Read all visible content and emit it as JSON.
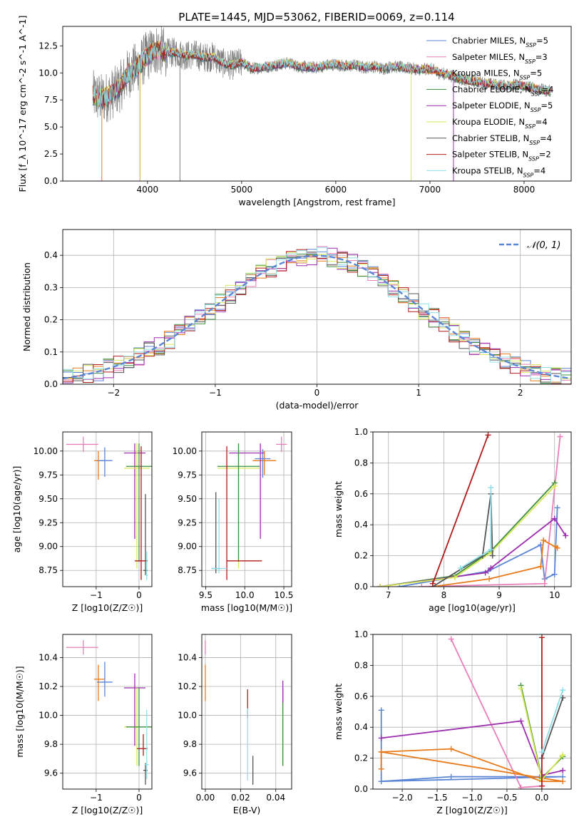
{
  "figure": {
    "title": "PLATE=1445, MJD=53062, FIBERID=0069, z=0.114"
  },
  "legend_series": [
    {
      "name": "Chabrier MILES",
      "nssp": "5",
      "color": "#5b86d6"
    },
    {
      "name": "Salpeter MILES",
      "nssp": "3",
      "color": "#e87fb8"
    },
    {
      "name": "Kroupa MILES",
      "nssp": "5",
      "color": "#e87a1a"
    },
    {
      "name": "Chabrier ELODIE",
      "nssp": "4",
      "color": "#3f8f3f"
    },
    {
      "name": "Salpeter ELODIE",
      "nssp": "5",
      "color": "#9b2fae"
    },
    {
      "name": "Kroupa ELODIE",
      "nssp": "4",
      "color": "#d8e85a"
    },
    {
      "name": "Chabrier STELIB",
      "nssp": "4",
      "color": "#555555"
    },
    {
      "name": "Salpeter STELIB",
      "nssp": "2",
      "color": "#b01b1b"
    },
    {
      "name": "Kroupa STELIB",
      "nssp": "4",
      "color": "#8fe0e8"
    }
  ],
  "chart_data": [
    {
      "id": "spectrum",
      "type": "line",
      "xlabel": "wavelength [Angstrom, rest frame]",
      "ylabel": "Flux [f_λ 10^-17 erg cm^-2 s^-1 A^-1]",
      "xlim": [
        3100,
        8500
      ],
      "ylim": [
        0,
        14.3
      ],
      "xticks": [
        4000,
        5000,
        6000,
        7000,
        8000
      ],
      "yticks": [
        0.0,
        2.5,
        5.0,
        7.5,
        10.0,
        12.5
      ],
      "grid": false,
      "legend": "top-right",
      "observed_color": "#808080",
      "model_envelope": {
        "x": [
          3420,
          3520,
          3600,
          3700,
          3800,
          3900,
          4000,
          4100,
          4200,
          4300,
          4400,
          4500,
          4600,
          4700,
          4800,
          4900,
          5000,
          5100,
          5200,
          5300,
          5400,
          5500,
          5600,
          5700,
          5800,
          5900,
          6000,
          6100,
          6200,
          6300,
          6400,
          6500,
          6600,
          6700,
          6800,
          6900,
          7000,
          7100,
          7200,
          7300,
          7400,
          7500,
          7600,
          7700,
          7800,
          7900,
          8000,
          8100,
          8200,
          8280
        ],
        "y": [
          7.9,
          7.6,
          7.9,
          8.6,
          10.0,
          10.6,
          11.6,
          12.2,
          11.8,
          11.9,
          11.6,
          11.7,
          11.4,
          11.5,
          10.9,
          10.7,
          11.0,
          10.4,
          10.5,
          10.6,
          10.8,
          10.9,
          10.6,
          10.5,
          10.5,
          10.7,
          10.8,
          10.6,
          10.7,
          10.5,
          10.6,
          10.4,
          10.6,
          10.5,
          10.4,
          10.3,
          10.4,
          10.0,
          9.8,
          9.5,
          9.3,
          9.2,
          9.0,
          8.9,
          8.8,
          8.9,
          8.8,
          8.6,
          8.4,
          8.3
        ]
      }
    },
    {
      "id": "residuals",
      "type": "line",
      "xlabel": "(data-model)/error",
      "ylabel": "Normed distribution",
      "xlim": [
        -2.5,
        2.5
      ],
      "ylim": [
        0,
        0.48
      ],
      "xticks": [
        -2,
        -1,
        0,
        1,
        2
      ],
      "yticks": [
        0.0,
        0.1,
        0.2,
        0.3,
        0.4
      ],
      "grid": true,
      "legend": "top-right",
      "reference_curve": {
        "name": "𝒩(0, 1)",
        "mean": 0,
        "sigma": 1,
        "style": "dashed",
        "color": "#5b86d6"
      },
      "histogram_series_count": 9
    },
    {
      "id": "age-vs-Z",
      "type": "scatter",
      "xlabel": "Z [log10(Z/Z☉)]",
      "ylabel": "age  [log10(age/yr)]",
      "xlim": [
        -1.78,
        0.3
      ],
      "ylim": [
        8.58,
        10.2
      ],
      "xticks": [
        -1,
        0
      ],
      "yticks": [
        8.75,
        9.0,
        9.25,
        9.5,
        9.75,
        10.0
      ],
      "grid": true,
      "points": [
        {
          "series": "Salpeter MILES",
          "x": -1.3,
          "y": 10.07,
          "xerr": [
            0.4,
            0.35
          ],
          "yerr": [
            0.08,
            0.08
          ]
        },
        {
          "series": "Kroupa MILES",
          "x": -0.95,
          "y": 9.9,
          "xerr": [
            0.1,
            0.15
          ],
          "yerr": [
            0.2,
            0.1
          ]
        },
        {
          "series": "Chabrier MILES",
          "x": -0.8,
          "y": 9.9,
          "xerr": [
            0.18,
            0.18
          ],
          "yerr": [
            0.17,
            0.14
          ]
        },
        {
          "series": "Salpeter ELODIE",
          "x": -0.1,
          "y": 9.98,
          "xerr": [
            0.25,
            0.25
          ],
          "yerr": [
            0.9,
            0.1
          ]
        },
        {
          "series": "Kroupa ELODIE",
          "x": -0.05,
          "y": 9.82,
          "xerr": [
            0.3,
            0.3
          ],
          "yerr": [
            1.05,
            0.26
          ]
        },
        {
          "series": "Chabrier ELODIE",
          "x": 0.0,
          "y": 9.84,
          "xerr": [
            0.3,
            0.3
          ],
          "yerr": [
            1.0,
            0.24
          ]
        },
        {
          "series": "Salpeter STELIB",
          "x": 0.05,
          "y": 8.85,
          "xerr": [
            0.15,
            0.15
          ],
          "yerr": [
            0.2,
            1.2
          ]
        },
        {
          "series": "Chabrier STELIB",
          "x": 0.15,
          "y": 8.75,
          "xerr": [
            0.05,
            0.05
          ],
          "yerr": [
            0.05,
            0.8
          ]
        },
        {
          "series": "Kroupa STELIB",
          "x": 0.18,
          "y": 8.7,
          "xerr": [
            0.03,
            0.03
          ],
          "yerr": [
            0.05,
            0.25
          ]
        }
      ]
    },
    {
      "id": "age-vs-mass",
      "type": "scatter",
      "xlabel": "mass [log10(M/M☉)]",
      "ylabel": "",
      "xlim": [
        9.45,
        10.6
      ],
      "ylim": [
        8.58,
        10.2
      ],
      "xticks": [
        9.5,
        10.0,
        10.5
      ],
      "yticks": [
        8.75,
        9.0,
        9.25,
        9.5,
        9.75,
        10.0
      ],
      "grid": true,
      "points": [
        {
          "series": "Salpeter MILES",
          "x": 10.47,
          "y": 10.07,
          "xerr": [
            0.07,
            0.07
          ],
          "yerr": [
            0.08,
            0.08
          ]
        },
        {
          "series": "Kroupa MILES",
          "x": 10.25,
          "y": 9.9,
          "xerr": [
            0.15,
            0.15
          ],
          "yerr": [
            0.15,
            0.1
          ]
        },
        {
          "series": "Chabrier MILES",
          "x": 10.23,
          "y": 9.92,
          "xerr": [
            0.1,
            0.1
          ],
          "yerr": [
            0.2,
            0.1
          ]
        },
        {
          "series": "Salpeter ELODIE",
          "x": 10.2,
          "y": 9.98,
          "xerr": [
            0.4,
            0.05
          ],
          "yerr": [
            0.9,
            0.1
          ]
        },
        {
          "series": "Kroupa ELODIE",
          "x": 9.92,
          "y": 9.82,
          "xerr": [
            0.27,
            0.27
          ],
          "yerr": [
            1.05,
            0.26
          ]
        },
        {
          "series": "Chabrier ELODIE",
          "x": 9.92,
          "y": 9.84,
          "xerr": [
            0.27,
            0.27
          ],
          "yerr": [
            1.0,
            0.24
          ]
        },
        {
          "series": "Salpeter STELIB",
          "x": 9.77,
          "y": 8.85,
          "xerr": [
            0.0,
            0.45
          ],
          "yerr": [
            0.2,
            1.2
          ]
        },
        {
          "series": "Chabrier STELIB",
          "x": 9.63,
          "y": 8.77,
          "xerr": [
            0.05,
            0.05
          ],
          "yerr": [
            0.05,
            0.8
          ]
        },
        {
          "series": "Kroupa STELIB",
          "x": 9.67,
          "y": 8.77,
          "xerr": [
            0.1,
            0.1
          ],
          "yerr": [
            0.05,
            0.73
          ]
        }
      ]
    },
    {
      "id": "massweight-vs-age",
      "type": "line",
      "xlabel": "age  [log10(age/yr)]",
      "ylabel": "mass weight",
      "xlim": [
        6.72,
        10.3
      ],
      "ylim": [
        0,
        1.0
      ],
      "xticks": [
        7,
        8,
        9,
        10
      ],
      "yticks": [
        0.0,
        0.2,
        0.4,
        0.6,
        0.8,
        1.0
      ],
      "grid": true,
      "series": [
        {
          "name": "Chabrier MILES",
          "x": [
            7.2,
            8.8,
            9.75,
            9.82,
            10.0,
            10.05
          ],
          "y": [
            0.0,
            0.1,
            0.27,
            0.05,
            0.08,
            0.51
          ]
        },
        {
          "name": "Salpeter MILES",
          "x": [
            7.6,
            9.82,
            10.1
          ],
          "y": [
            0.0,
            0.02,
            0.97
          ]
        },
        {
          "name": "Kroupa MILES",
          "x": [
            7.8,
            8.82,
            9.75,
            9.8,
            10.05,
            10.02
          ],
          "y": [
            0.0,
            0.05,
            0.13,
            0.3,
            0.25,
            0.26
          ]
        },
        {
          "name": "Chabrier ELODIE",
          "x": [
            6.85,
            8.2,
            8.85,
            10.0
          ],
          "y": [
            0.0,
            0.07,
            0.23,
            0.67
          ]
        },
        {
          "name": "Salpeter ELODIE",
          "x": [
            6.85,
            8.75,
            8.85,
            10.0,
            10.2
          ],
          "y": [
            0.0,
            0.09,
            0.12,
            0.44,
            0.33
          ]
        },
        {
          "name": "Kroupa ELODIE",
          "x": [
            6.85,
            8.2,
            8.85,
            10.0
          ],
          "y": [
            0.0,
            0.06,
            0.22,
            0.65
          ]
        },
        {
          "name": "Chabrier STELIB",
          "x": [
            7.8,
            8.7,
            8.85,
            8.88
          ],
          "y": [
            0.0,
            0.2,
            0.6,
            0.2
          ]
        },
        {
          "name": "Salpeter STELIB",
          "x": [
            7.8,
            8.8
          ],
          "y": [
            0.02,
            0.98
          ]
        },
        {
          "name": "Kroupa STELIB",
          "x": [
            8.3,
            8.85,
            8.85
          ],
          "y": [
            0.12,
            0.24,
            0.64
          ]
        }
      ]
    },
    {
      "id": "mass-vs-Z",
      "type": "scatter",
      "xlabel": "Z [log10(Z/Z☉)]",
      "ylabel": "mass [log10(M/M☉)]",
      "xlim": [
        -1.78,
        0.3
      ],
      "ylim": [
        9.49,
        10.56
      ],
      "xticks": [
        -1,
        0
      ],
      "yticks": [
        9.6,
        9.8,
        10.0,
        10.2,
        10.4
      ],
      "grid": true,
      "points": [
        {
          "series": "Salpeter MILES",
          "x": -1.3,
          "y": 10.47,
          "xerr": [
            0.4,
            0.35
          ],
          "yerr": [
            0.05,
            0.05
          ]
        },
        {
          "series": "Kroupa MILES",
          "x": -0.95,
          "y": 10.25,
          "xerr": [
            0.1,
            0.15
          ],
          "yerr": [
            0.15,
            0.1
          ]
        },
        {
          "series": "Chabrier MILES",
          "x": -0.8,
          "y": 10.23,
          "xerr": [
            0.18,
            0.18
          ],
          "yerr": [
            0.1,
            0.14
          ]
        },
        {
          "series": "Salpeter ELODIE",
          "x": -0.1,
          "y": 10.19,
          "xerr": [
            0.25,
            0.25
          ],
          "yerr": [
            0.4,
            0.1
          ]
        },
        {
          "series": "Kroupa ELODIE",
          "x": -0.05,
          "y": 9.92,
          "xerr": [
            0.3,
            0.3
          ],
          "yerr": [
            0.27,
            0.27
          ]
        },
        {
          "series": "Chabrier ELODIE",
          "x": 0.0,
          "y": 9.92,
          "xerr": [
            0.3,
            0.3
          ],
          "yerr": [
            0.27,
            0.27
          ]
        },
        {
          "series": "Salpeter STELIB",
          "x": 0.1,
          "y": 9.77,
          "xerr": [
            0.15,
            0.1
          ],
          "yerr": [
            0.05,
            0.1
          ]
        },
        {
          "series": "Chabrier STELIB",
          "x": 0.15,
          "y": 9.62,
          "xerr": [
            0.05,
            0.05
          ],
          "yerr": [
            0.1,
            0.05
          ]
        },
        {
          "series": "Kroupa STELIB",
          "x": 0.18,
          "y": 9.66,
          "xerr": [
            0.05,
            0.05
          ],
          "yerr": [
            0.1,
            0.38
          ]
        }
      ]
    },
    {
      "id": "mass-vs-ebv",
      "type": "scatter",
      "xlabel": "E(B-V)",
      "ylabel": "",
      "xlim": [
        -0.002,
        0.049
      ],
      "ylim": [
        9.49,
        10.56
      ],
      "xticks": [
        0.0,
        0.02,
        0.04
      ],
      "yticks": [
        9.6,
        9.8,
        10.0,
        10.2,
        10.4
      ],
      "grid": true,
      "points": [
        {
          "series": "Salpeter MILES",
          "x": 0.0,
          "y": 10.47,
          "yerr": [
            0.05,
            0.05
          ]
        },
        {
          "series": "Kroupa MILES",
          "x": 0.0,
          "y": 10.25,
          "yerr": [
            0.15,
            0.1
          ]
        },
        {
          "series": "Salpeter STELIB",
          "x": 0.024,
          "y": 10.08,
          "yerr": [
            0.1,
            0.1
          ]
        },
        {
          "series": "Kroupa STELIB",
          "x": 0.024,
          "y": 9.8,
          "yerr": [
            0.25,
            0.25
          ]
        },
        {
          "series": "Chabrier STELIB",
          "x": 0.027,
          "y": 9.62,
          "yerr": [
            0.1,
            0.1
          ]
        },
        {
          "series": "Kroupa ELODIE",
          "x": 0.044,
          "y": 9.92,
          "yerr": [
            0.27,
            0.27
          ]
        },
        {
          "series": "Chabrier ELODIE",
          "x": 0.044,
          "y": 9.92,
          "yerr": [
            0.27,
            0.27
          ]
        },
        {
          "series": "Salpeter ELODIE",
          "x": 0.044,
          "y": 10.19,
          "yerr": [
            0.1,
            0.05
          ]
        }
      ]
    },
    {
      "id": "massweight-vs-Z",
      "type": "line",
      "xlabel": "Z [log10(Z/Z☉)]",
      "ylabel": "mass weight",
      "xlim": [
        -2.42,
        0.42
      ],
      "ylim": [
        0,
        1.0
      ],
      "xticks": [
        -2.0,
        -1.5,
        -1.0,
        -0.5,
        0.0
      ],
      "yticks": [
        0.0,
        0.2,
        0.4,
        0.6,
        0.8,
        1.0
      ],
      "grid": true,
      "series": [
        {
          "name": "Chabrier MILES",
          "x": [
            -2.3,
            -1.3,
            0.0,
            0.3,
            -2.3,
            -2.3
          ],
          "y": [
            0.05,
            0.08,
            0.08,
            0.08,
            0.05,
            0.51
          ]
        },
        {
          "name": "Salpeter MILES",
          "x": [
            -1.3,
            -0.3,
            0.0
          ],
          "y": [
            0.97,
            0.01,
            0.02
          ]
        },
        {
          "name": "Kroupa MILES",
          "x": [
            -2.3,
            -1.3,
            0.0,
            0.3,
            -2.3,
            -2.3
          ],
          "y": [
            0.24,
            0.26,
            0.05,
            0.05,
            0.24,
            0.13
          ]
        },
        {
          "name": "Chabrier ELODIE",
          "x": [
            -0.3,
            0.0,
            0.3
          ],
          "y": [
            0.67,
            0.07,
            0.21
          ]
        },
        {
          "name": "Salpeter ELODIE",
          "x": [
            -2.3,
            -0.3,
            0.0,
            0.3
          ],
          "y": [
            0.33,
            0.44,
            0.09,
            0.12
          ]
        },
        {
          "name": "Kroupa ELODIE",
          "x": [
            -0.3,
            0.0,
            0.3
          ],
          "y": [
            0.65,
            0.06,
            0.22
          ]
        },
        {
          "name": "Chabrier STELIB",
          "x": [
            0.0,
            0.3
          ],
          "y": [
            0.2,
            0.59
          ]
        },
        {
          "name": "Salpeter STELIB",
          "x": [
            0.0,
            0.0
          ],
          "y": [
            0.02,
            0.98
          ]
        },
        {
          "name": "Kroupa STELIB",
          "x": [
            0.0,
            0.3
          ],
          "y": [
            0.24,
            0.64
          ]
        }
      ]
    }
  ]
}
